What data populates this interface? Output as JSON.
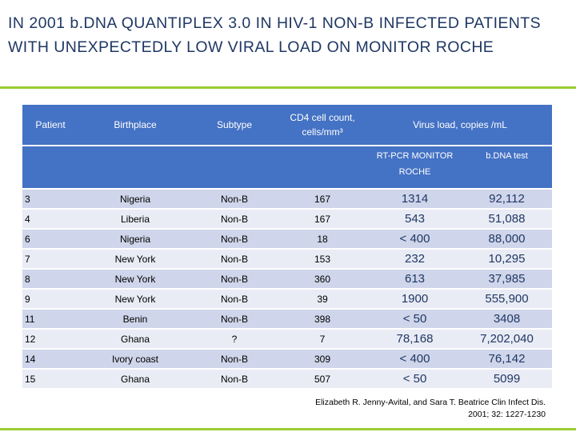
{
  "title": "IN 2001 b.DNA QUANTIPLEX 3.0 IN HIV-1 NON-B INFECTED PATIENTS WITH UNEXPECTEDLY LOW VIRAL LOAD ON MONITOR ROCHE",
  "table": {
    "headers": {
      "patient": "Patient",
      "birthplace": "Birthplace",
      "subtype": "Subtype",
      "cd4": "CD4 cell count, cells/mm³",
      "virus_load": "Virus load, copies /mL",
      "rtpcr": "RT-PCR MONITOR ROCHE",
      "bdna": "b.DNA test"
    },
    "rows": [
      {
        "patient": "3",
        "birthplace": "Nigeria",
        "subtype": "Non-B",
        "cd4": "167",
        "rtpcr": "1314",
        "bdna": "92,112"
      },
      {
        "patient": "4",
        "birthplace": "Liberia",
        "subtype": "Non-B",
        "cd4": "167",
        "rtpcr": "543",
        "bdna": "51,088"
      },
      {
        "patient": "6",
        "birthplace": "Nigeria",
        "subtype": "Non-B",
        "cd4": "18",
        "rtpcr": "< 400",
        "bdna": "88,000"
      },
      {
        "patient": "7",
        "birthplace": "New York",
        "subtype": "Non-B",
        "cd4": "153",
        "rtpcr": "232",
        "bdna": "10,295"
      },
      {
        "patient": "8",
        "birthplace": "New York",
        "subtype": "Non-B",
        "cd4": "360",
        "rtpcr": "613",
        "bdna": "37,985"
      },
      {
        "patient": "9",
        "birthplace": "New York",
        "subtype": "Non-B",
        "cd4": "39",
        "rtpcr": "1900",
        "bdna": "555,900"
      },
      {
        "patient": "11",
        "birthplace": "Benin",
        "subtype": "Non-B",
        "cd4": "398",
        "rtpcr": "< 50",
        "bdna": "3408"
      },
      {
        "patient": "12",
        "birthplace": "Ghana",
        "subtype": "?",
        "cd4": "7",
        "rtpcr": "78,168",
        "bdna": "7,202,040"
      },
      {
        "patient": "14",
        "birthplace": "Ivory coast",
        "subtype": "Non-B",
        "cd4": "309",
        "rtpcr": "< 400",
        "bdna": "76,142"
      },
      {
        "patient": "15",
        "birthplace": "Ghana",
        "subtype": "Non-B",
        "cd4": "507",
        "rtpcr": "< 50",
        "bdna": "5099"
      }
    ]
  },
  "citation": {
    "line1": "Elizabeth R. Jenny-Avital, and Sara T. Beatrice Clin Infect Dis.",
    "line2": "2001; 32: 1227-1230"
  },
  "colors": {
    "header_blue": "#4472c4",
    "row_dark": "#cfd5ea",
    "row_light": "#e9ebf5",
    "title_navy": "#1f3864",
    "accent_green": "#9acd32"
  }
}
